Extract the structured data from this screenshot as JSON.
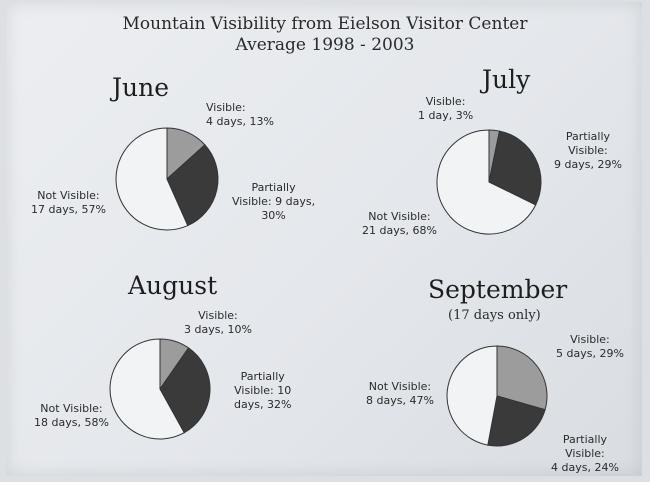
{
  "page": {
    "title_line1": "Mountain Visibility from Eielson Visitor Center",
    "title_line2": "Average 1998 - 2003"
  },
  "colors": {
    "visible": "#9c9c9c",
    "partially_visible": "#3a3a3a",
    "not_visible": "#f2f3f5",
    "outline": "#333333"
  },
  "chart_data": [
    {
      "type": "pie",
      "title": "June",
      "subtitle": "",
      "slices": [
        {
          "name": "Visible",
          "days": 4,
          "percent": 13
        },
        {
          "name": "Partially Visible",
          "days": 9,
          "percent": 30
        },
        {
          "name": "Not Visible",
          "days": 17,
          "percent": 57
        }
      ],
      "labels": {
        "visible": [
          "Visible:",
          "4 days, 13%"
        ],
        "partial": [
          "Partially",
          "Visible: 9 days,",
          "30%"
        ],
        "not": [
          "Not Visible:",
          "17 days, 57%"
        ]
      }
    },
    {
      "type": "pie",
      "title": "July",
      "subtitle": "",
      "slices": [
        {
          "name": "Visible",
          "days": 1,
          "percent": 3
        },
        {
          "name": "Partially Visible",
          "days": 9,
          "percent": 29
        },
        {
          "name": "Not Visible",
          "days": 21,
          "percent": 68
        }
      ],
      "labels": {
        "visible": [
          "Visible:",
          "1 day, 3%"
        ],
        "partial": [
          "Partially",
          "Visible:",
          "9 days, 29%"
        ],
        "not": [
          "Not Visible:",
          "21 days, 68%"
        ]
      }
    },
    {
      "type": "pie",
      "title": "August",
      "subtitle": "",
      "slices": [
        {
          "name": "Visible",
          "days": 3,
          "percent": 10
        },
        {
          "name": "Partially Visible",
          "days": 10,
          "percent": 32
        },
        {
          "name": "Not Visible",
          "days": 18,
          "percent": 58
        }
      ],
      "labels": {
        "visible": [
          "Visible:",
          "3 days, 10%"
        ],
        "partial": [
          "Partially",
          "Visible: 10",
          "days, 32%"
        ],
        "not": [
          "Not Visible:",
          "18 days, 58%"
        ]
      }
    },
    {
      "type": "pie",
      "title": "September",
      "subtitle": "(17 days only)",
      "slices": [
        {
          "name": "Visible",
          "days": 5,
          "percent": 29
        },
        {
          "name": "Partially Visible",
          "days": 4,
          "percent": 24
        },
        {
          "name": "Not Visible",
          "days": 8,
          "percent": 47
        }
      ],
      "labels": {
        "visible": [
          "Visible:",
          "5 days, 29%"
        ],
        "partial": [
          "Partially",
          "Visible:",
          "4 days, 24%"
        ],
        "not": [
          "Not Visible:",
          "8 days, 47%"
        ]
      }
    }
  ]
}
